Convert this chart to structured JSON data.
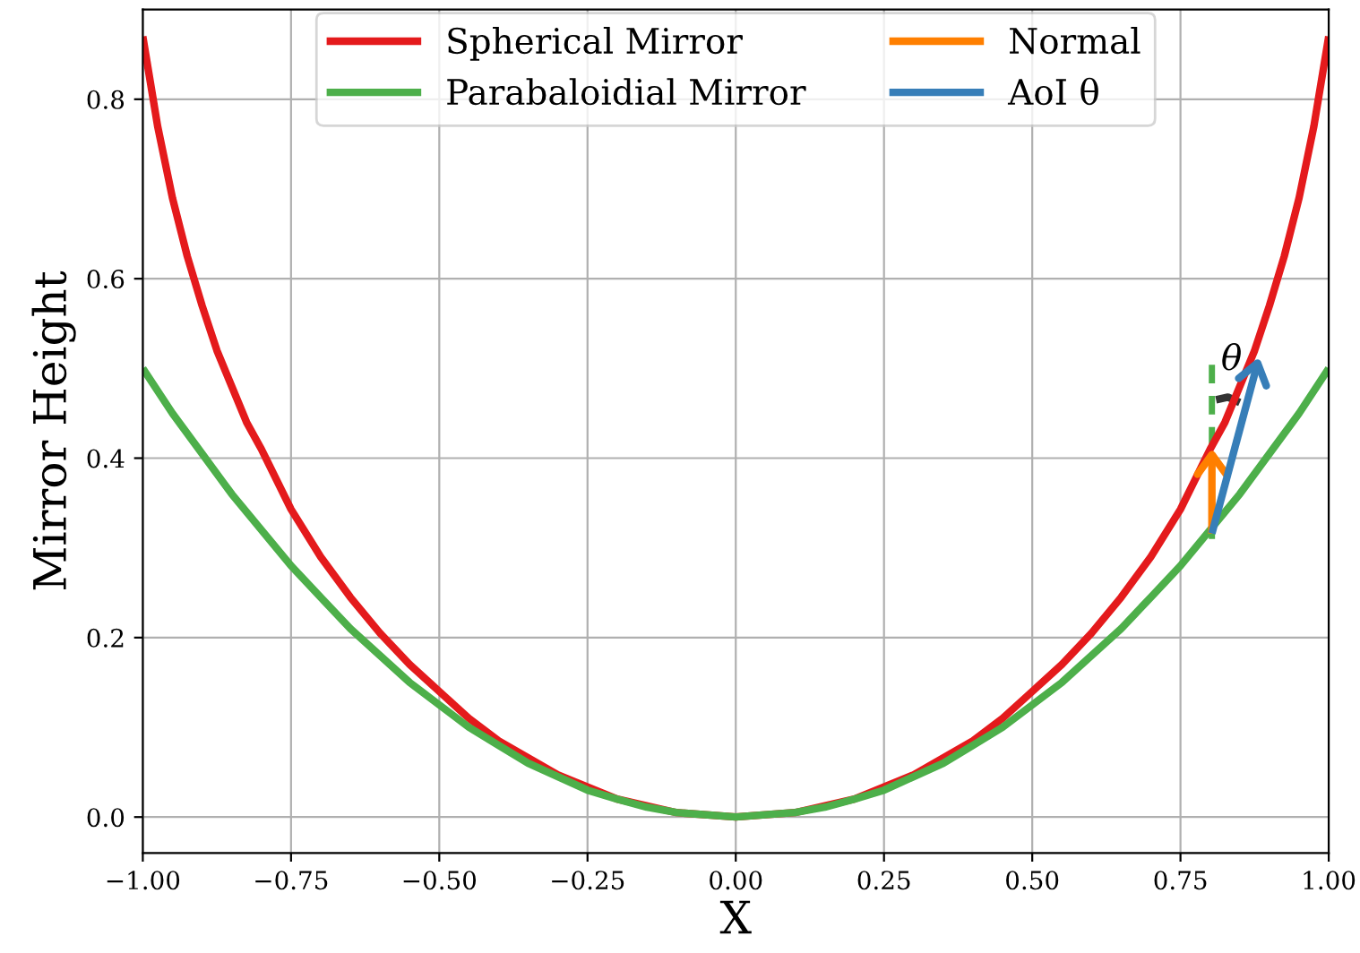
{
  "chart_data": {
    "type": "line",
    "xlabel": "X",
    "ylabel": "Mirror Height",
    "xlim": [
      -1.0,
      1.0
    ],
    "ylim": [
      -0.04,
      0.9
    ],
    "xticks": [
      {
        "value": -1.0,
        "label": "−1.00"
      },
      {
        "value": -0.75,
        "label": "−0.75"
      },
      {
        "value": -0.5,
        "label": "−0.50"
      },
      {
        "value": -0.25,
        "label": "−0.25"
      },
      {
        "value": 0.0,
        "label": "0.00"
      },
      {
        "value": 0.25,
        "label": "0.25"
      },
      {
        "value": 0.5,
        "label": "0.50"
      },
      {
        "value": 0.75,
        "label": "0.75"
      },
      {
        "value": 1.0,
        "label": "1.00"
      }
    ],
    "yticks": [
      {
        "value": 0.0,
        "label": "0.0"
      },
      {
        "value": 0.2,
        "label": "0.2"
      },
      {
        "value": 0.4,
        "label": "0.4"
      },
      {
        "value": 0.6,
        "label": "0.6"
      },
      {
        "value": 0.8,
        "label": "0.8"
      }
    ],
    "grid": true,
    "legend": "top",
    "line_style": "solid",
    "series": [
      {
        "name": "Spherical Mirror",
        "color": "#e41a1c",
        "x": [
          -1.0,
          -0.975,
          -0.95,
          -0.925,
          -0.9,
          -0.875,
          -0.85,
          -0.825,
          -0.8,
          -0.75,
          -0.7,
          -0.65,
          -0.6,
          -0.55,
          -0.5,
          -0.45,
          -0.4,
          -0.3,
          -0.2,
          -0.1,
          0.0,
          0.1,
          0.2,
          0.3,
          0.4,
          0.45,
          0.5,
          0.55,
          0.6,
          0.65,
          0.7,
          0.75,
          0.8,
          0.825,
          0.85,
          0.875,
          0.9,
          0.925,
          0.95,
          0.975,
          1.0
        ],
        "values": [
          0.87,
          0.77,
          0.69,
          0.625,
          0.57,
          0.52,
          0.48,
          0.44,
          0.41,
          0.343,
          0.29,
          0.245,
          0.205,
          0.17,
          0.14,
          0.11,
          0.085,
          0.047,
          0.02,
          0.005,
          0.0,
          0.005,
          0.02,
          0.047,
          0.085,
          0.11,
          0.14,
          0.17,
          0.205,
          0.245,
          0.29,
          0.343,
          0.41,
          0.44,
          0.48,
          0.52,
          0.57,
          0.625,
          0.69,
          0.77,
          0.87
        ]
      },
      {
        "name": "Parabaloidial Mirror",
        "color": "#4daf4a",
        "x": [
          -1.0,
          -0.95,
          -0.9,
          -0.85,
          -0.8,
          -0.75,
          -0.7,
          -0.65,
          -0.6,
          -0.55,
          -0.5,
          -0.45,
          -0.4,
          -0.35,
          -0.3,
          -0.25,
          -0.2,
          -0.15,
          -0.1,
          0.0,
          0.1,
          0.15,
          0.2,
          0.25,
          0.3,
          0.35,
          0.4,
          0.45,
          0.5,
          0.55,
          0.6,
          0.65,
          0.7,
          0.75,
          0.8,
          0.85,
          0.9,
          0.95,
          1.0
        ],
        "values": [
          0.5,
          0.45,
          0.405,
          0.36,
          0.32,
          0.28,
          0.245,
          0.21,
          0.18,
          0.15,
          0.125,
          0.1,
          0.08,
          0.06,
          0.045,
          0.03,
          0.02,
          0.011,
          0.005,
          0.0,
          0.005,
          0.011,
          0.02,
          0.03,
          0.045,
          0.06,
          0.08,
          0.1,
          0.125,
          0.15,
          0.18,
          0.21,
          0.245,
          0.28,
          0.32,
          0.36,
          0.405,
          0.45,
          0.5
        ]
      },
      {
        "name": "Normal",
        "color": "#ff7f00",
        "x": [
          0.803,
          0.803
        ],
        "values": [
          0.316,
          0.404
        ]
      },
      {
        "name": "AoI θ",
        "color": "#377eb8",
        "x": [
          0.803,
          0.88
        ],
        "values": [
          0.316,
          0.506
        ]
      },
      {
        "color": "#4daf4a",
        "line_style": "dashed",
        "x": [
          0.803,
          0.803
        ],
        "values": [
          0.31,
          0.51
        ]
      },
      {
        "color": "#333333",
        "x": [
          0.81,
          0.83,
          0.85
        ],
        "values": [
          0.465,
          0.468,
          0.462
        ]
      }
    ],
    "annotations": [
      "θ"
    ]
  }
}
